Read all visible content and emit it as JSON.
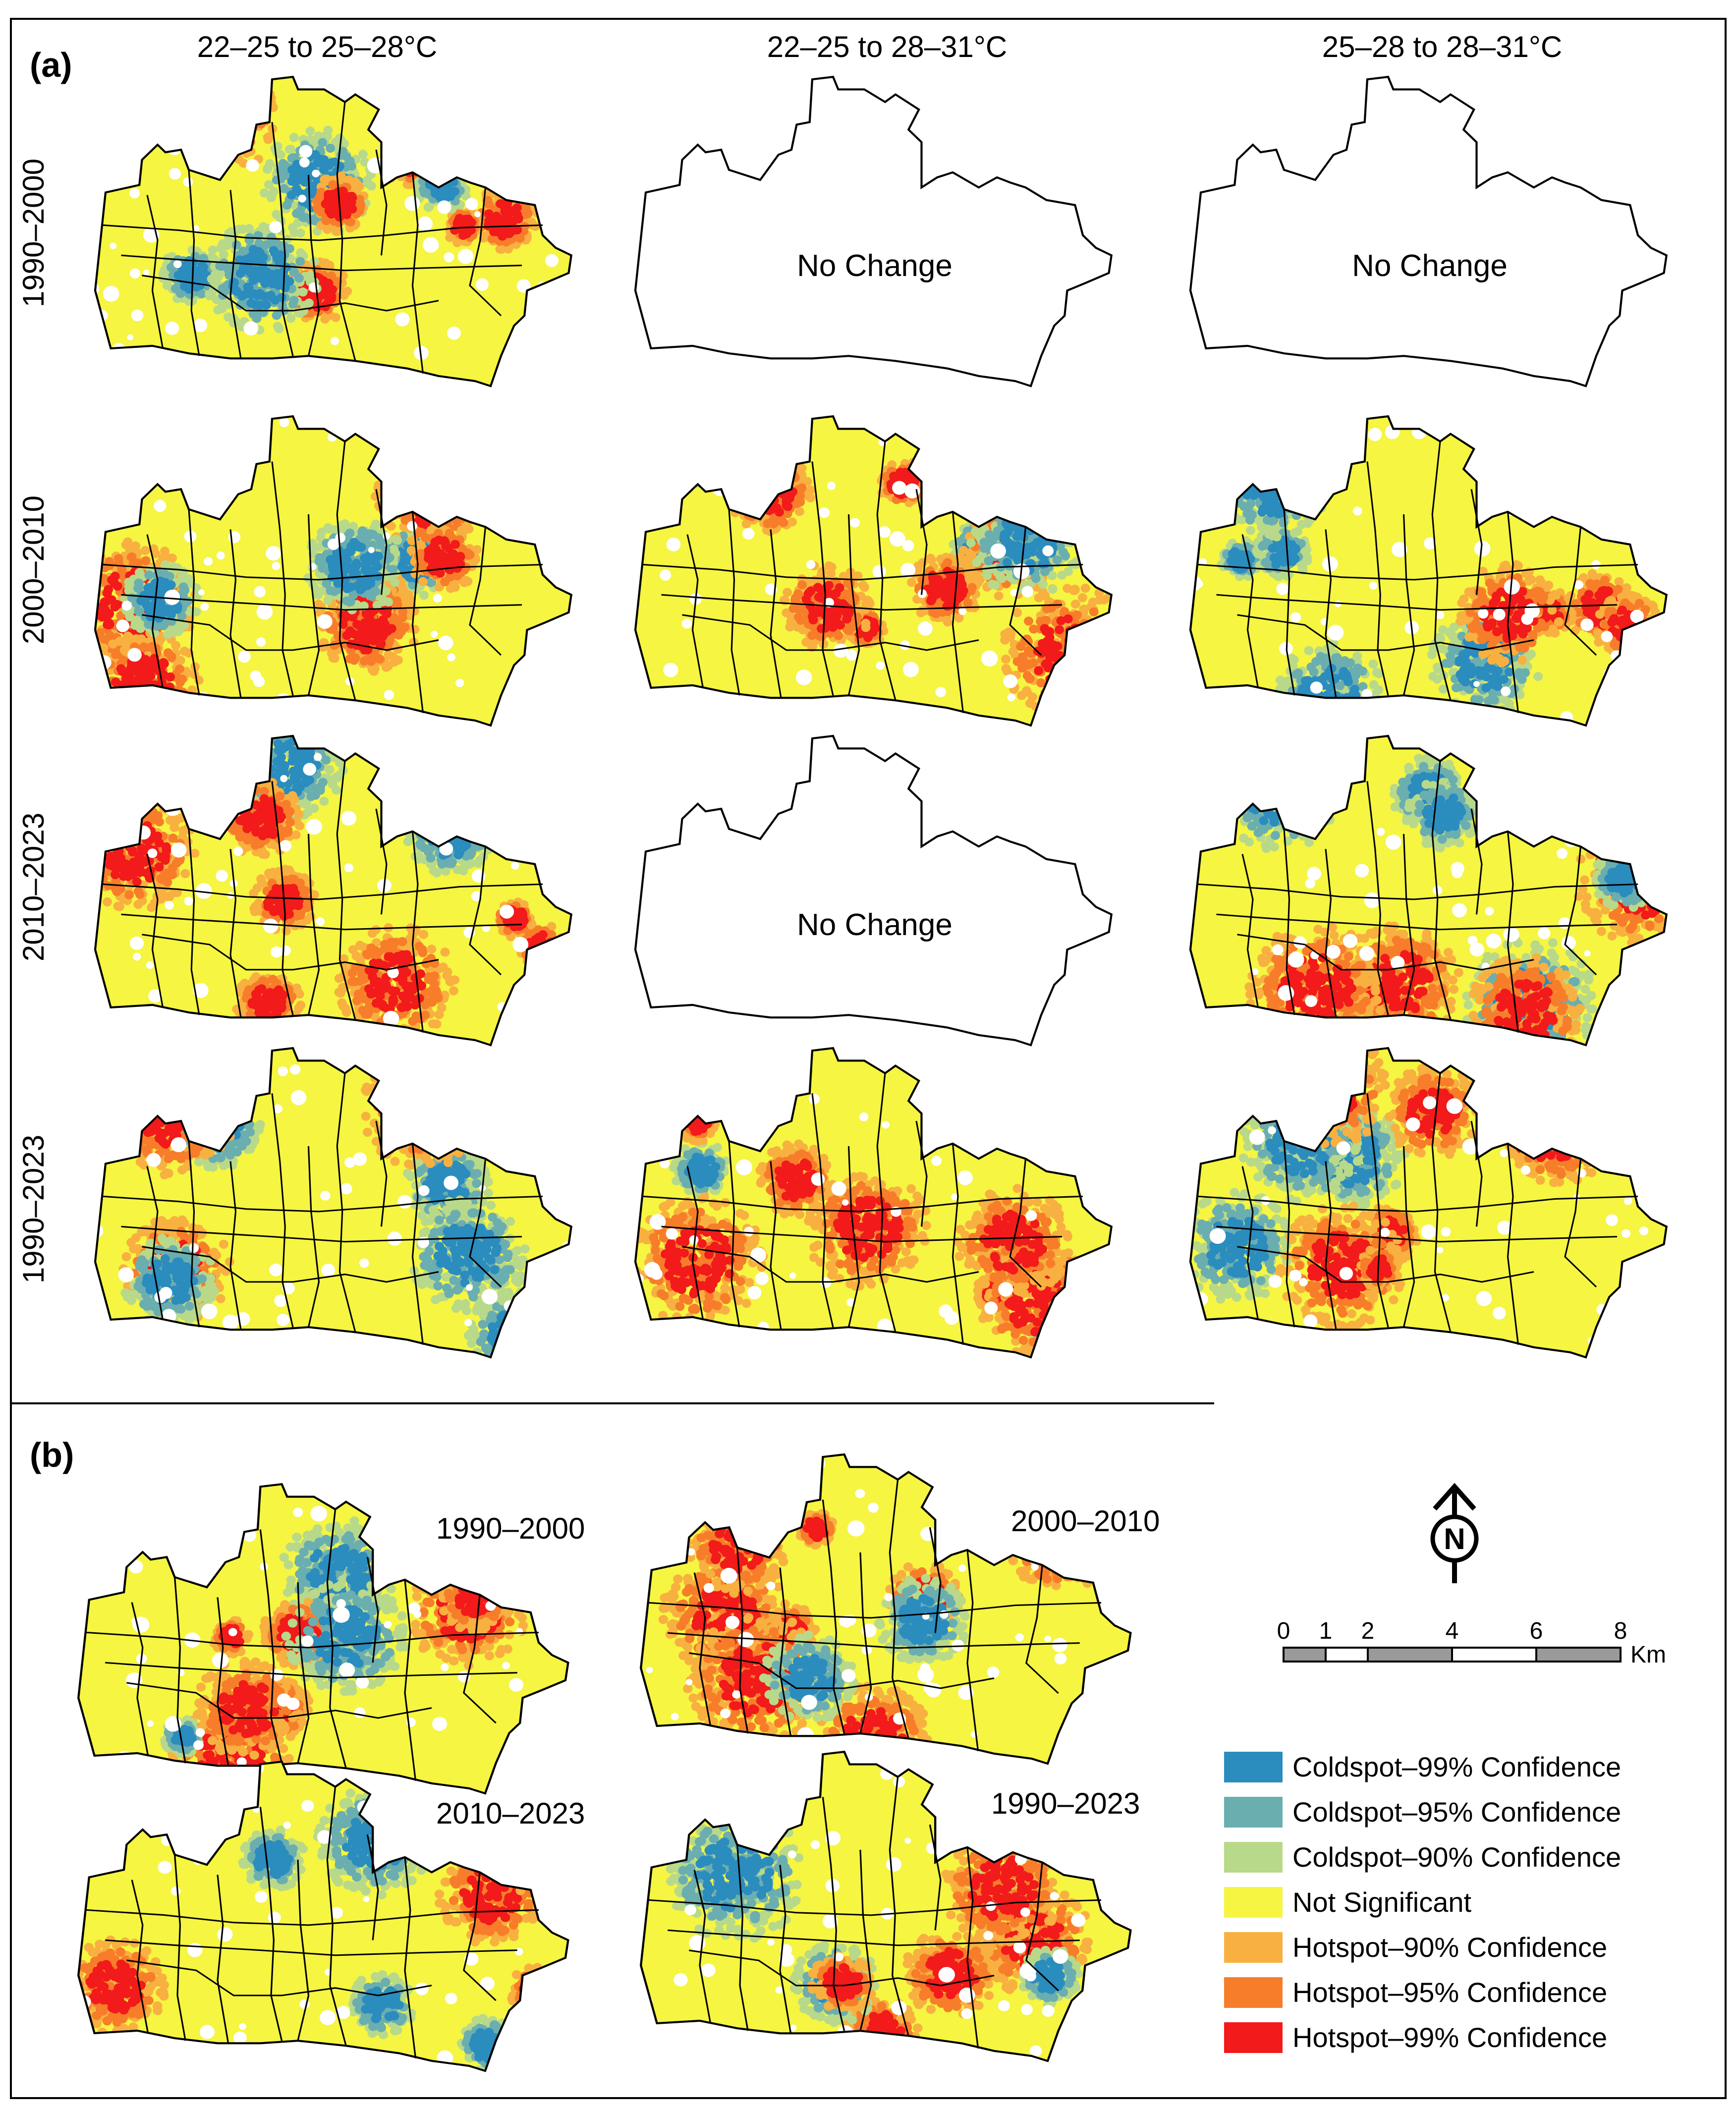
{
  "panel_a": {
    "letter": "(a)",
    "columns": [
      "22–25 to 25–28°C",
      "22–25 to 28–31°C",
      "25–28 to 28–31°C"
    ],
    "rows": [
      "1990–2000",
      "2000–2010",
      "2010–2023",
      "1990–2023"
    ],
    "no_change_label": "No Change",
    "no_change_cells": [
      [
        0,
        1
      ],
      [
        0,
        2
      ],
      [
        2,
        1
      ]
    ]
  },
  "panel_b": {
    "letter": "(b)",
    "maps": [
      "1990–2000",
      "2000–2010",
      "2010–2023",
      "1990–2023"
    ]
  },
  "north_arrow": {
    "letter": "N",
    "icon": "north-arrow-icon"
  },
  "scale_bar": {
    "ticks": [
      "0",
      "1",
      "2",
      "4",
      "6",
      "8"
    ],
    "tick_values": [
      0,
      1,
      2,
      4,
      6,
      8
    ],
    "unit": "Km"
  },
  "legend": {
    "items": [
      {
        "label": "Coldspot–99% Confidence",
        "color": "#2b8cbe"
      },
      {
        "label": "Coldspot–95% Confidence",
        "color": "#6baeb0"
      },
      {
        "label": "Coldspot–90% Confidence",
        "color": "#b8d98a"
      },
      {
        "label": "Not Significant",
        "color": "#f5f542"
      },
      {
        "label": "Hotspot–90% Confidence",
        "color": "#f8b040"
      },
      {
        "label": "Hotspot–95% Confidence",
        "color": "#f77d2a"
      },
      {
        "label": "Hotspot–99% Confidence",
        "color": "#f21a1a"
      }
    ]
  }
}
